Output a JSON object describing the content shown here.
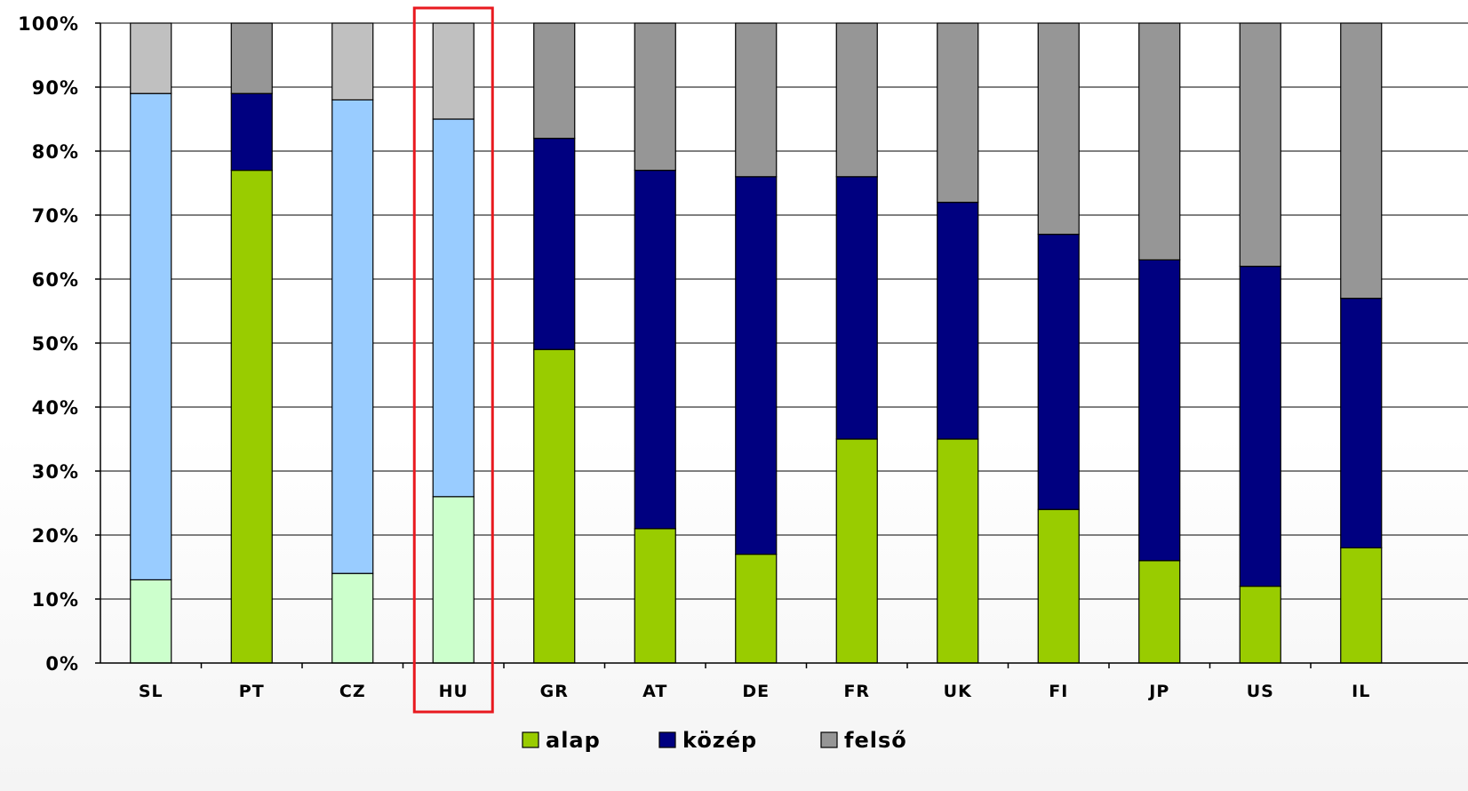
{
  "chart_data": {
    "type": "bar",
    "stacked": true,
    "categories": [
      "SL",
      "PT",
      "CZ",
      "HU",
      "GR",
      "AT",
      "DE",
      "FR",
      "UK",
      "FI",
      "JP",
      "US",
      "IL"
    ],
    "series": [
      {
        "name": "alap",
        "values": [
          13,
          77,
          14,
          26,
          49,
          21,
          17,
          35,
          35,
          24,
          16,
          12,
          18
        ]
      },
      {
        "name": "közép",
        "values": [
          76,
          12,
          74,
          59,
          33,
          56,
          59,
          41,
          37,
          43,
          47,
          50,
          39
        ]
      },
      {
        "name": "felső",
        "values": [
          11,
          11,
          12,
          15,
          18,
          23,
          24,
          24,
          28,
          33,
          37,
          38,
          43
        ]
      }
    ],
    "y_ticks": [
      "0%",
      "10%",
      "20%",
      "30%",
      "40%",
      "50%",
      "60%",
      "70%",
      "80%",
      "90%",
      "100%"
    ],
    "ylim": [
      0,
      100
    ],
    "grid": true,
    "legend_position": "bottom",
    "colors": {
      "alap": "#99cc00",
      "közép": "#000080",
      "felső": "#969696"
    },
    "light_colors": {
      "alap": "#ccffcc",
      "közép": "#99ccff",
      "felső": "#c0c0c0"
    },
    "light_categories": [
      "SL",
      "CZ",
      "HU"
    ],
    "light_felso_exceptions": [
      "PT"
    ],
    "highlighted_category": "HU",
    "highlight_color": "#e8191f"
  }
}
